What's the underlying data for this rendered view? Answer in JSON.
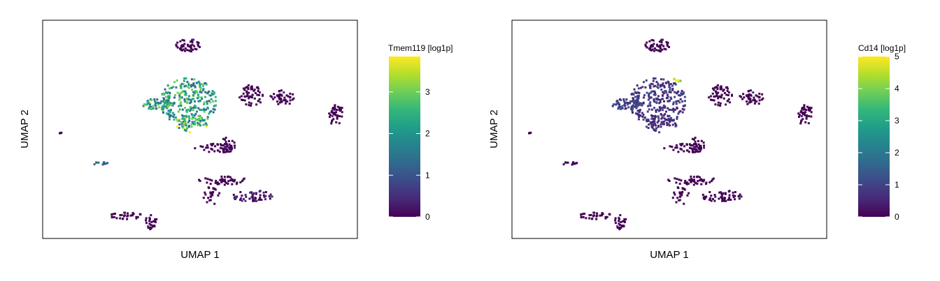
{
  "colors": {
    "background": "#ffffff",
    "frame": "#000000",
    "viridis": [
      "#440154",
      "#482878",
      "#3e4989",
      "#31688e",
      "#26828e",
      "#1f9e89",
      "#35b779",
      "#6ece58",
      "#b5de2b",
      "#fde725"
    ]
  },
  "chart_data": [
    {
      "type": "scatter",
      "title": "",
      "xlabel": "UMAP 1",
      "ylabel": "UMAP 2",
      "grid": false,
      "legend": "right colorbar",
      "colorbar": {
        "label": "Tmem119 [log1p]",
        "ticks": [
          "0",
          "1",
          "2",
          "3"
        ],
        "range": [
          0,
          3.85
        ]
      },
      "clusters": [
        {
          "cx": 0.46,
          "cy": 0.63,
          "rx": 0.09,
          "ry": 0.11,
          "n": 260,
          "level": 0.55
        },
        {
          "cx": 0.36,
          "cy": 0.62,
          "rx": 0.05,
          "ry": 0.025,
          "n": 60,
          "level": 0.55
        },
        {
          "cx": 0.47,
          "cy": 0.53,
          "rx": 0.05,
          "ry": 0.04,
          "n": 50,
          "level": 0.7
        },
        {
          "cx": 0.46,
          "cy": 0.89,
          "rx": 0.04,
          "ry": 0.03,
          "n": 45,
          "level": 0.0
        },
        {
          "cx": 0.66,
          "cy": 0.66,
          "rx": 0.04,
          "ry": 0.05,
          "n": 55,
          "level": 0.0
        },
        {
          "cx": 0.76,
          "cy": 0.65,
          "rx": 0.04,
          "ry": 0.035,
          "n": 45,
          "level": 0.0
        },
        {
          "cx": 0.93,
          "cy": 0.57,
          "rx": 0.025,
          "ry": 0.05,
          "n": 40,
          "level": 0.0
        },
        {
          "cx": 0.55,
          "cy": 0.42,
          "rx": 0.07,
          "ry": 0.02,
          "n": 45,
          "level": 0.0
        },
        {
          "cx": 0.58,
          "cy": 0.43,
          "rx": 0.03,
          "ry": 0.04,
          "n": 25,
          "level": 0.0
        },
        {
          "cx": 0.57,
          "cy": 0.27,
          "rx": 0.08,
          "ry": 0.02,
          "n": 45,
          "level": 0.0
        },
        {
          "cx": 0.66,
          "cy": 0.2,
          "rx": 0.07,
          "ry": 0.025,
          "n": 55,
          "level": 0.05
        },
        {
          "cx": 0.53,
          "cy": 0.2,
          "rx": 0.03,
          "ry": 0.04,
          "n": 25,
          "level": 0.0
        },
        {
          "cx": 0.26,
          "cy": 0.11,
          "rx": 0.05,
          "ry": 0.02,
          "n": 30,
          "level": 0.0
        },
        {
          "cx": 0.34,
          "cy": 0.08,
          "rx": 0.02,
          "ry": 0.035,
          "n": 25,
          "level": 0.0
        },
        {
          "cx": 0.18,
          "cy": 0.35,
          "rx": 0.03,
          "ry": 0.008,
          "n": 12,
          "level": 0.3
        },
        {
          "cx": 0.05,
          "cy": 0.49,
          "rx": 0.01,
          "ry": 0.006,
          "n": 4,
          "level": 0.0
        }
      ]
    },
    {
      "type": "scatter",
      "title": "",
      "xlabel": "UMAP 1",
      "ylabel": "UMAP 2",
      "grid": false,
      "legend": "right colorbar",
      "colorbar": {
        "label": "Cd14 [log1p]",
        "ticks": [
          "0",
          "1",
          "2",
          "3",
          "4",
          "5"
        ],
        "range": [
          0,
          5
        ]
      },
      "clusters": [
        {
          "cx": 0.46,
          "cy": 0.63,
          "rx": 0.09,
          "ry": 0.11,
          "n": 260,
          "level": 0.15
        },
        {
          "cx": 0.36,
          "cy": 0.62,
          "rx": 0.05,
          "ry": 0.025,
          "n": 60,
          "level": 0.2
        },
        {
          "cx": 0.47,
          "cy": 0.53,
          "rx": 0.05,
          "ry": 0.04,
          "n": 50,
          "level": 0.12
        },
        {
          "cx": 0.46,
          "cy": 0.89,
          "rx": 0.04,
          "ry": 0.03,
          "n": 45,
          "level": 0.0
        },
        {
          "cx": 0.66,
          "cy": 0.66,
          "rx": 0.04,
          "ry": 0.05,
          "n": 55,
          "level": 0.0
        },
        {
          "cx": 0.76,
          "cy": 0.65,
          "rx": 0.04,
          "ry": 0.035,
          "n": 45,
          "level": 0.0
        },
        {
          "cx": 0.93,
          "cy": 0.57,
          "rx": 0.025,
          "ry": 0.05,
          "n": 40,
          "level": 0.0
        },
        {
          "cx": 0.55,
          "cy": 0.42,
          "rx": 0.07,
          "ry": 0.02,
          "n": 45,
          "level": 0.0
        },
        {
          "cx": 0.58,
          "cy": 0.43,
          "rx": 0.03,
          "ry": 0.04,
          "n": 25,
          "level": 0.0
        },
        {
          "cx": 0.57,
          "cy": 0.27,
          "rx": 0.08,
          "ry": 0.02,
          "n": 45,
          "level": 0.0
        },
        {
          "cx": 0.66,
          "cy": 0.2,
          "rx": 0.07,
          "ry": 0.025,
          "n": 55,
          "level": 0.0
        },
        {
          "cx": 0.53,
          "cy": 0.2,
          "rx": 0.03,
          "ry": 0.04,
          "n": 25,
          "level": 0.0
        },
        {
          "cx": 0.26,
          "cy": 0.11,
          "rx": 0.05,
          "ry": 0.02,
          "n": 30,
          "level": 0.0
        },
        {
          "cx": 0.34,
          "cy": 0.08,
          "rx": 0.02,
          "ry": 0.035,
          "n": 25,
          "level": 0.0
        },
        {
          "cx": 0.18,
          "cy": 0.35,
          "rx": 0.03,
          "ry": 0.008,
          "n": 12,
          "level": 0.0
        },
        {
          "cx": 0.05,
          "cy": 0.49,
          "rx": 0.01,
          "ry": 0.006,
          "n": 4,
          "level": 0.0
        },
        {
          "cx": 0.52,
          "cy": 0.73,
          "rx": 0.03,
          "ry": 0.008,
          "n": 8,
          "level": 0.85
        }
      ]
    }
  ]
}
